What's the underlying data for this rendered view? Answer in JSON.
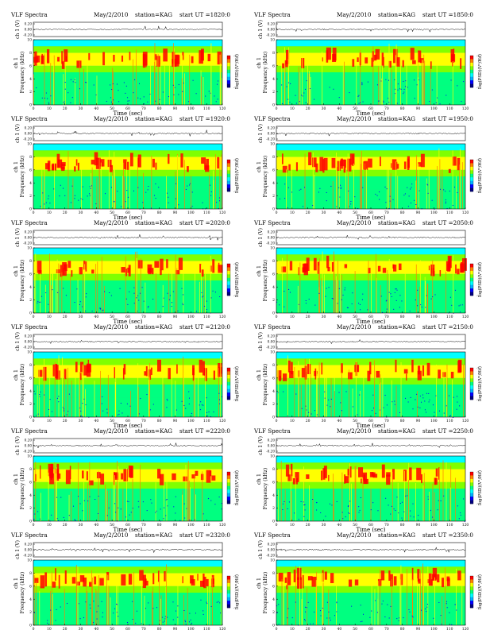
{
  "chart_data": {
    "type": "heatmap",
    "panels": [
      {
        "title": "VLF Spectra",
        "date": "May/2/2010",
        "station": "station=KAG",
        "start": "start UT =1820:0"
      },
      {
        "title": "VLF Spectra",
        "date": "May/2/2010",
        "station": "station=KAG",
        "start": "start UT =1850:0"
      },
      {
        "title": "VLF Spectra",
        "date": "May/2/2010",
        "station": "station=KAG",
        "start": "start UT =1920:0"
      },
      {
        "title": "VLF Spectra",
        "date": "May/2/2010",
        "station": "station=KAG",
        "start": "start UT =1950:0"
      },
      {
        "title": "VLF Spectra",
        "date": "May/2/2010",
        "station": "station=KAG",
        "start": "start UT =2020:0"
      },
      {
        "title": "VLF Spectra",
        "date": "May/2/2010",
        "station": "station=KAG",
        "start": "start UT =2050:0"
      },
      {
        "title": "VLF Spectra",
        "date": "May/2/2010",
        "station": "station=KAG",
        "start": "start UT =2120:0"
      },
      {
        "title": "VLF Spectra",
        "date": "May/2/2010",
        "station": "station=KAG",
        "start": "start UT =2150:0"
      },
      {
        "title": "VLF Spectra",
        "date": "May/2/2010",
        "station": "station=KAG",
        "start": "start UT =2220:0"
      },
      {
        "title": "VLF Spectra",
        "date": "May/2/2010",
        "station": "station=KAG",
        "start": "start UT =2250:0"
      },
      {
        "title": "VLF Spectra",
        "date": "May/2/2010",
        "station": "station=KAG",
        "start": "start UT =2320:0"
      },
      {
        "title": "VLF Spectra",
        "date": "May/2/2010",
        "station": "station=KAG",
        "start": "start UT =2350:0"
      }
    ],
    "wave_ylabel": "ch 1 (V)",
    "wave_yticks": [
      "0.20",
      "0.00",
      "-0.20"
    ],
    "spec_ylabel_top": "ch 1",
    "spec_ylabel": "Frequency (kHz)",
    "spec_yticks": [
      "0",
      "2",
      "4",
      "6",
      "8",
      "10"
    ],
    "ylim": [
      0,
      10
    ],
    "xlabel": "Time (sec)",
    "xticks": [
      "0",
      "10",
      "20",
      "30",
      "40",
      "50",
      "60",
      "70",
      "80",
      "90",
      "100",
      "110",
      "120"
    ],
    "xlim": [
      0,
      120
    ],
    "colorbar_label": "log(PSD)(V²/Hz)",
    "colorbar_ticks": [
      "-1",
      "-7"
    ],
    "colormap": [
      "#000080",
      "#0000ff",
      "#00b0ff",
      "#00ffff",
      "#00ff80",
      "#80ff00",
      "#ffff00",
      "#ff8000",
      "#ff0000"
    ]
  }
}
